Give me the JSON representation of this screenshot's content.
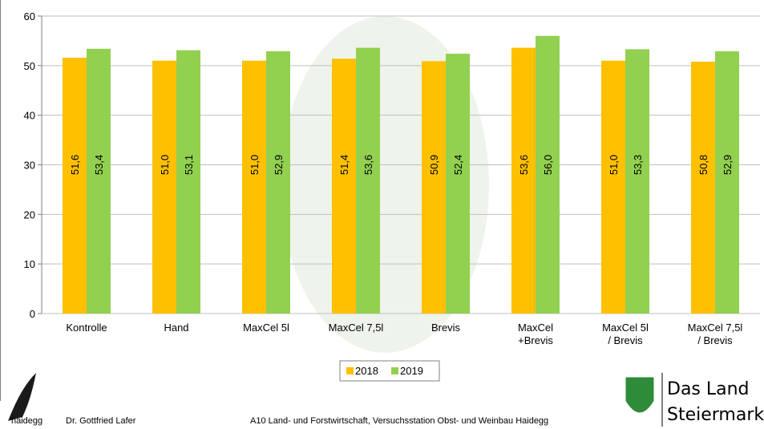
{
  "chart_data": {
    "type": "bar",
    "categories": [
      "Kontrolle",
      "Hand",
      "MaxCel 5l",
      "MaxCel 7,5l",
      "Brevis",
      "MaxCel\n+Brevis",
      "MaxCel 5l\n/ Brevis",
      "MaxCel 7,5l\n/ Brevis"
    ],
    "series": [
      {
        "name": "2018",
        "color": "#ffc000",
        "values": [
          51.6,
          51.0,
          51.0,
          51.4,
          50.9,
          53.6,
          51.0,
          50.8
        ],
        "value_labels": [
          "51,6",
          "51,0",
          "51,0",
          "51,4",
          "50,9",
          "53,6",
          "51,0",
          "50,8"
        ]
      },
      {
        "name": "2019",
        "color": "#92d050",
        "values": [
          53.4,
          53.1,
          52.9,
          53.6,
          52.4,
          56.0,
          53.3,
          52.9
        ],
        "value_labels": [
          "53,4",
          "53,1",
          "52,9",
          "53,6",
          "52,4",
          "56,0",
          "53,3",
          "52,9"
        ]
      }
    ],
    "ylim": [
      0,
      60
    ],
    "yticks": [
      0,
      10,
      20,
      30,
      40,
      50,
      60
    ],
    "grid": true,
    "legend": "bottom"
  },
  "footer": {
    "logo_text": "haidegg",
    "author": "Dr. Gottfried Lafer",
    "institution": "A10 Land- und Forstwirtschaft, Versuchsstation Obst- und Weinbau Haidegg",
    "brand_line1": "Das Land",
    "brand_line2": "Steiermark"
  }
}
